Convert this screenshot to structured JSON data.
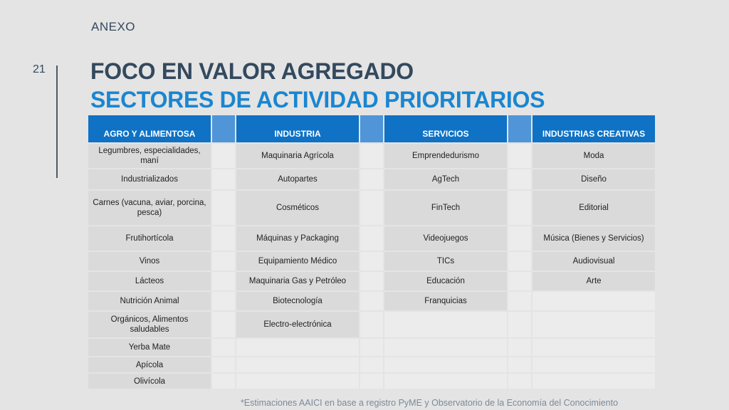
{
  "header": {
    "annex": "ANEXO",
    "page_number": "21"
  },
  "titles": {
    "line1": "FOCO EN VALOR AGREGADO",
    "line2": "SECTORES DE ACTIVIDAD PRIORITARIOS"
  },
  "table": {
    "columns": [
      "AGRO Y ALIMENTOSA",
      "INDUSTRIA",
      "SERVICIOS",
      "INDUSTRIAS CREATIVAS"
    ],
    "rows": [
      [
        "Legumbres, especialidades, maní",
        "Maquinaria Agrícola",
        "Emprendedurismo",
        "Moda"
      ],
      [
        "Industrializados",
        "Autopartes",
        "AgTech",
        "Diseño"
      ],
      [
        "Carnes (vacuna, aviar, porcina, pesca)",
        "Cosméticos",
        "FinTech",
        "Editorial"
      ],
      [
        "Frutihortícola",
        "Máquinas y Packaging",
        "Videojuegos",
        "Música (Bienes y Servicios)"
      ],
      [
        "Vinos",
        "Equipamiento Médico",
        "TICs",
        "Audiovisual"
      ],
      [
        "Lácteos",
        "Maquinaria Gas y Petróleo",
        "Educación",
        "Arte"
      ],
      [
        "Nutrición Animal",
        "Biotecnología",
        "Franquicias",
        ""
      ],
      [
        "Orgánicos, Alimentos saludables",
        "Electro-electrónica",
        "",
        ""
      ],
      [
        "Yerba Mate",
        "",
        "",
        ""
      ],
      [
        "Apícola",
        "",
        "",
        ""
      ],
      [
        "Olivícola",
        "",
        "",
        ""
      ]
    ]
  },
  "footnote": "*Estimaciones AAICI en base a registro PyME y Observatorio de la Economía del Conocimiento"
}
